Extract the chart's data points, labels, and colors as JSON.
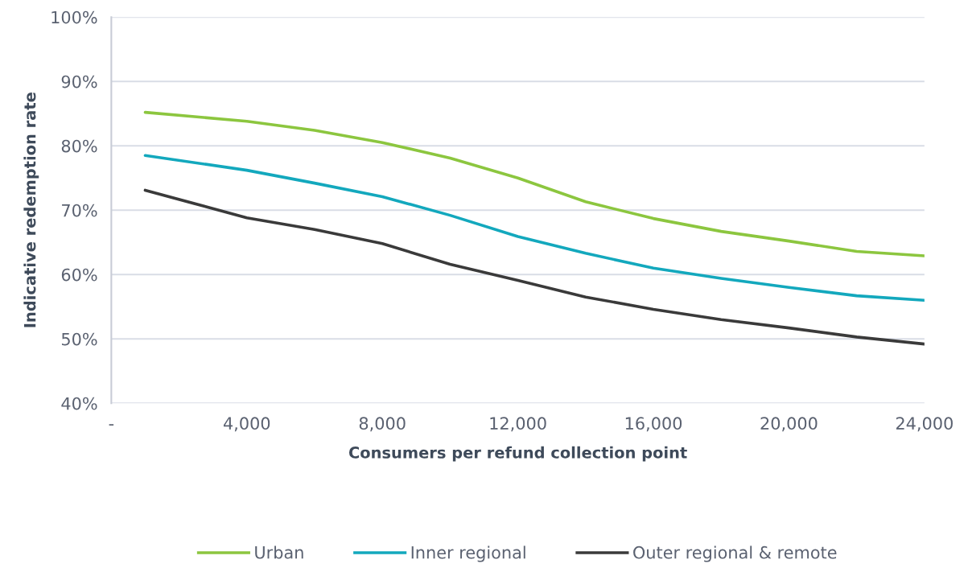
{
  "chart_data": {
    "type": "line",
    "xlabel": "Consumers per refund collection point",
    "ylabel": "Indicative redemption rate",
    "x": [
      1000,
      4000,
      6000,
      8000,
      10000,
      12000,
      14000,
      16000,
      18000,
      20000,
      22000,
      24000
    ],
    "series": [
      {
        "name": "Urban",
        "color": "#8cc63f",
        "values": [
          85.2,
          83.8,
          82.4,
          80.5,
          78.1,
          75.0,
          71.3,
          68.7,
          66.7,
          65.2,
          63.6,
          62.9
        ]
      },
      {
        "name": "Inner regional",
        "color": "#13a8bd",
        "values": [
          78.5,
          76.2,
          74.2,
          72.1,
          69.2,
          65.9,
          63.3,
          61.0,
          59.4,
          58.0,
          56.7,
          56.0
        ]
      },
      {
        "name": "Outer regional & remote",
        "color": "#3a3a3a",
        "values": [
          73.1,
          68.8,
          67.0,
          64.8,
          61.6,
          59.1,
          56.5,
          54.6,
          53.0,
          51.7,
          50.3,
          49.2
        ]
      }
    ],
    "xlim": [
      0,
      24000
    ],
    "xticks": [
      {
        "value": 0,
        "label": "-"
      },
      {
        "value": 4000,
        "label": "4,000"
      },
      {
        "value": 8000,
        "label": "8,000"
      },
      {
        "value": 12000,
        "label": "12,000"
      },
      {
        "value": 16000,
        "label": "16,000"
      },
      {
        "value": 20000,
        "label": "20,000"
      },
      {
        "value": 24000,
        "label": "24,000"
      }
    ],
    "ylim": [
      40,
      100
    ],
    "yticks": [
      {
        "value": 40,
        "label": "40%"
      },
      {
        "value": 50,
        "label": "50%"
      },
      {
        "value": 60,
        "label": "60%"
      },
      {
        "value": 70,
        "label": "70%"
      },
      {
        "value": 80,
        "label": "80%"
      },
      {
        "value": 90,
        "label": "90%"
      },
      {
        "value": 100,
        "label": "100%"
      }
    ],
    "grid": "y",
    "legend": "bottom",
    "line_style": "solid",
    "marker": "none"
  }
}
